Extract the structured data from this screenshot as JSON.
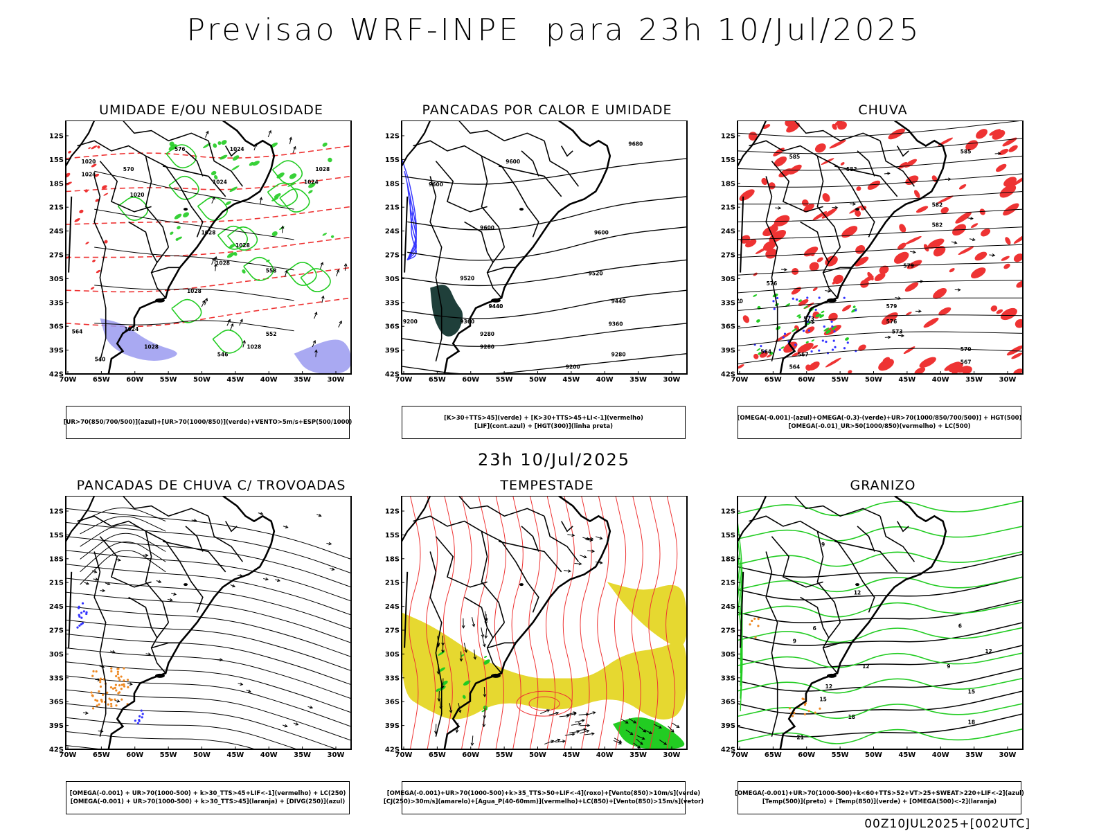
{
  "header": {
    "title": "Previsao WRF-INPE  para 23h 10/Jul/2025"
  },
  "middle": {
    "title": "23h 10/Jul/2025"
  },
  "footer": {
    "stamp": "00Z10JUL2025+[002UTC]"
  },
  "axes": {
    "lat_labels": [
      "12S",
      "15S",
      "18S",
      "21S",
      "24S",
      "27S",
      "30S",
      "33S",
      "36S",
      "39S",
      "42S"
    ],
    "lon_labels": [
      "70W",
      "65W",
      "60W",
      "55W",
      "50W",
      "45W",
      "40W",
      "35W",
      "30W"
    ]
  },
  "colors": {
    "blue": "#3333ff",
    "green": "#22cc22",
    "red": "#ee3333",
    "orange": "#ee8822",
    "yellow": "#e6d830",
    "darkteal": "#1f3f3a",
    "lavender": "#9a9af0"
  },
  "panels": [
    {
      "id": "umidade",
      "title": "UMIDADE E/OU NEBULOSIDADE",
      "legend": [
        "[UR>70(850/700/500)](azul)+[UR>70(1000/850)](verde)+VENTO>5m/s+ESP(500/1000)"
      ],
      "contour_labels": [
        "1020",
        "1024",
        "1020",
        "1024",
        "1028",
        "1028",
        "1028",
        "1024",
        "1028",
        "1028",
        "1024",
        "1024",
        "1028",
        "1028",
        "570",
        "576",
        "564",
        "558",
        "552",
        "546",
        "540"
      ]
    },
    {
      "id": "pancadas-calor",
      "title": "PANCADAS POR CALOR E UMIDADE",
      "legend": [
        "[K>30+TTS>45](verde) + [K>30+TTS>45+LI<-1](vermelho)",
        "[LIF](cont.azul) + [HGT(300)](linha preta)"
      ],
      "contour_labels": [
        "9680",
        "9600",
        "9600",
        "9600",
        "9520",
        "9440",
        "9200",
        "9280",
        "9360",
        "9440",
        "9520",
        "9600",
        "9440",
        "9360",
        "9280",
        "9280",
        "9200"
      ]
    },
    {
      "id": "chuva",
      "title": "CHUVA",
      "legend": [
        "[OMEGA(-0.001)-(azul)+OMEGA(-0.3)-(verde)+UR>70(1000/850/700/500)] + HGT(500)",
        "[OMEGA(-0.01)_UR>50(1000/850)(vermelho) + LC(500)"
      ],
      "contour_labels": [
        "585",
        "582",
        "585",
        "582",
        "579",
        "576",
        "573",
        "570",
        "567",
        "564",
        "579",
        "576",
        "573",
        "570",
        "567",
        "564",
        "582"
      ]
    },
    {
      "id": "trovoadas",
      "title": "PANCADAS DE CHUVA C/ TROVOADAS",
      "legend": [
        "[OMEGA(-0.001) + UR>70(1000-500) + k>30_TTS>45+LIF<-1](vermelho) + LC(250)",
        "[OMEGA(-0.001) + UR>70(1000-500) + k>30_TTS>45](laranja) + [DIVG(250)](azul)"
      ]
    },
    {
      "id": "tempestade",
      "title": "TEMPESTADE",
      "legend": [
        "[OMEGA(-0.001)+UR>70(1000-500)+k>35_TTS>50+LIF<-4](roxo)+[Vento(850)>10m/s](verde)",
        "[CJ(250)>30m/s](amarelo)+[Agua_P(40-60mm)](vermelho)+LC(850)+[Vento(850)>15m/s](vetor)"
      ]
    },
    {
      "id": "granizo",
      "title": "GRANIZO",
      "legend": [
        "[OMEGA(-0.001)+UR>70(1000-500)+k<60+TTS>52+VT>25+SWEAT>220+LIF<-2](azul)",
        "[Temp(500)](preto) + [Temp(850)](verde) + [OMEGA(500)<-2](laranja)"
      ],
      "contour_labels": [
        "6",
        "9",
        "9",
        "12",
        "12",
        "12",
        "15",
        "15",
        "18",
        "18",
        "21",
        "9",
        "6",
        "12"
      ]
    }
  ]
}
